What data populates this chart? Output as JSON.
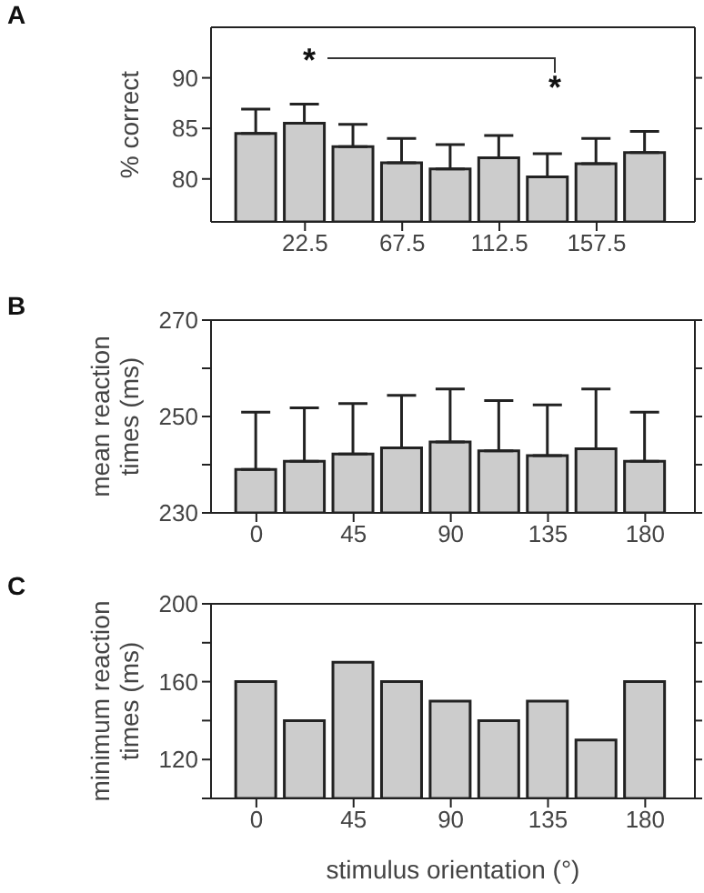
{
  "chart_data": [
    {
      "type": "bar",
      "title": "A",
      "ylabel": "% correct",
      "x": [
        0,
        22.5,
        45,
        67.5,
        90,
        112.5,
        135,
        157.5,
        180
      ],
      "xlim": [
        -21,
        203
      ],
      "xticks": [
        22.5,
        67.5,
        112.5,
        157.5
      ],
      "ylim": [
        75.75,
        95
      ],
      "yticks": [
        80,
        85,
        90
      ],
      "color": "#cccccc",
      "values": [
        84.5,
        85.5,
        83.2,
        81.6,
        81.0,
        82.1,
        80.2,
        81.5,
        82.6
      ],
      "errors": [
        [
          84.5,
          86.9
        ],
        [
          85.5,
          87.4
        ],
        [
          83.2,
          85.4
        ],
        [
          81.6,
          84.0
        ],
        [
          81.0,
          83.4
        ],
        [
          82.1,
          84.3
        ],
        [
          80.2,
          82.5
        ],
        [
          81.5,
          84.0
        ],
        [
          82.6,
          84.7
        ]
      ],
      "annotations": [
        "*",
        "*"
      ]
    },
    {
      "type": "bar",
      "title": "B",
      "ylabel": "mean reaction times (ms)",
      "x": [
        0,
        22.5,
        45,
        67.5,
        90,
        112.5,
        135,
        157.5,
        180
      ],
      "xlim": [
        -21,
        203
      ],
      "xticks": [
        0,
        45,
        90,
        135,
        180
      ],
      "ylim": [
        230,
        270
      ],
      "yticks": [
        230,
        {
          "value": 240,
          "label": null
        },
        250,
        {
          "value": 260,
          "label": null
        },
        270
      ],
      "color": "#cccccc",
      "values": [
        239.0,
        240.7,
        242.2,
        243.5,
        244.7,
        242.9,
        241.9,
        243.3,
        240.7
      ],
      "errors": [
        [
          239.0,
          250.9
        ],
        [
          240.7,
          251.8
        ],
        [
          242.2,
          252.7
        ],
        [
          243.5,
          254.4
        ],
        [
          244.7,
          255.7
        ],
        [
          242.9,
          253.3
        ],
        [
          241.9,
          252.4
        ],
        [
          243.3,
          255.7
        ],
        [
          240.7,
          250.9
        ]
      ]
    },
    {
      "type": "bar",
      "title": "C",
      "ylabel": "minimum reaction times (ms)",
      "xlabel": "stimulus orientation (°)",
      "x": [
        0,
        22.5,
        45,
        67.5,
        90,
        112.5,
        135,
        157.5,
        180
      ],
      "xlim": [
        -21,
        203
      ],
      "xticks": [
        0,
        45,
        90,
        135,
        180
      ],
      "ylim": [
        100,
        200
      ],
      "yticks": [
        {
          "value": 100,
          "label": null
        },
        120,
        {
          "value": 140,
          "label": null
        },
        160,
        {
          "value": 180,
          "label": null
        },
        200
      ],
      "color": "#cccccc",
      "values": [
        160,
        140,
        170,
        160,
        150,
        140,
        150,
        130,
        160
      ]
    }
  ]
}
